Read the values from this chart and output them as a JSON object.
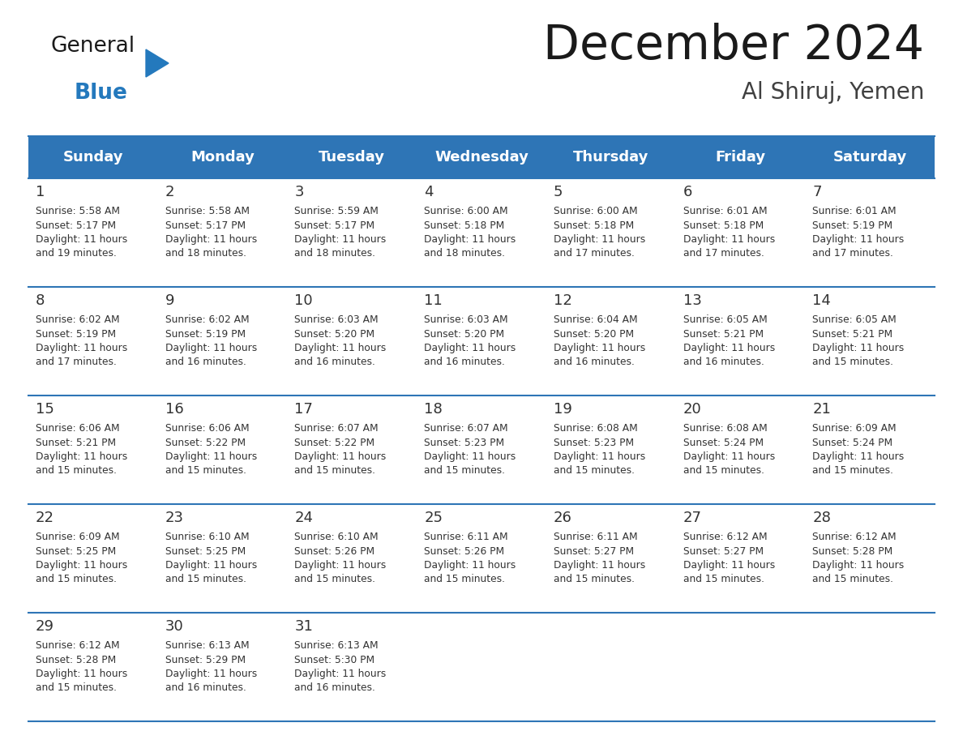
{
  "title": "December 2024",
  "subtitle": "Al Shiruj, Yemen",
  "header_bg_color": "#2E75B6",
  "header_text_color": "#FFFFFF",
  "day_headers": [
    "Sunday",
    "Monday",
    "Tuesday",
    "Wednesday",
    "Thursday",
    "Friday",
    "Saturday"
  ],
  "calendar_data": [
    [
      {
        "day": "1",
        "sunrise": "5:58 AM",
        "sunset": "5:17 PM",
        "daylight_h": "11 hours",
        "daylight_m": "and 19 minutes."
      },
      {
        "day": "2",
        "sunrise": "5:58 AM",
        "sunset": "5:17 PM",
        "daylight_h": "11 hours",
        "daylight_m": "and 18 minutes."
      },
      {
        "day": "3",
        "sunrise": "5:59 AM",
        "sunset": "5:17 PM",
        "daylight_h": "11 hours",
        "daylight_m": "and 18 minutes."
      },
      {
        "day": "4",
        "sunrise": "6:00 AM",
        "sunset": "5:18 PM",
        "daylight_h": "11 hours",
        "daylight_m": "and 18 minutes."
      },
      {
        "day": "5",
        "sunrise": "6:00 AM",
        "sunset": "5:18 PM",
        "daylight_h": "11 hours",
        "daylight_m": "and 17 minutes."
      },
      {
        "day": "6",
        "sunrise": "6:01 AM",
        "sunset": "5:18 PM",
        "daylight_h": "11 hours",
        "daylight_m": "and 17 minutes."
      },
      {
        "day": "7",
        "sunrise": "6:01 AM",
        "sunset": "5:19 PM",
        "daylight_h": "11 hours",
        "daylight_m": "and 17 minutes."
      }
    ],
    [
      {
        "day": "8",
        "sunrise": "6:02 AM",
        "sunset": "5:19 PM",
        "daylight_h": "11 hours",
        "daylight_m": "and 17 minutes."
      },
      {
        "day": "9",
        "sunrise": "6:02 AM",
        "sunset": "5:19 PM",
        "daylight_h": "11 hours",
        "daylight_m": "and 16 minutes."
      },
      {
        "day": "10",
        "sunrise": "6:03 AM",
        "sunset": "5:20 PM",
        "daylight_h": "11 hours",
        "daylight_m": "and 16 minutes."
      },
      {
        "day": "11",
        "sunrise": "6:03 AM",
        "sunset": "5:20 PM",
        "daylight_h": "11 hours",
        "daylight_m": "and 16 minutes."
      },
      {
        "day": "12",
        "sunrise": "6:04 AM",
        "sunset": "5:20 PM",
        "daylight_h": "11 hours",
        "daylight_m": "and 16 minutes."
      },
      {
        "day": "13",
        "sunrise": "6:05 AM",
        "sunset": "5:21 PM",
        "daylight_h": "11 hours",
        "daylight_m": "and 16 minutes."
      },
      {
        "day": "14",
        "sunrise": "6:05 AM",
        "sunset": "5:21 PM",
        "daylight_h": "11 hours",
        "daylight_m": "and 15 minutes."
      }
    ],
    [
      {
        "day": "15",
        "sunrise": "6:06 AM",
        "sunset": "5:21 PM",
        "daylight_h": "11 hours",
        "daylight_m": "and 15 minutes."
      },
      {
        "day": "16",
        "sunrise": "6:06 AM",
        "sunset": "5:22 PM",
        "daylight_h": "11 hours",
        "daylight_m": "and 15 minutes."
      },
      {
        "day": "17",
        "sunrise": "6:07 AM",
        "sunset": "5:22 PM",
        "daylight_h": "11 hours",
        "daylight_m": "and 15 minutes."
      },
      {
        "day": "18",
        "sunrise": "6:07 AM",
        "sunset": "5:23 PM",
        "daylight_h": "11 hours",
        "daylight_m": "and 15 minutes."
      },
      {
        "day": "19",
        "sunrise": "6:08 AM",
        "sunset": "5:23 PM",
        "daylight_h": "11 hours",
        "daylight_m": "and 15 minutes."
      },
      {
        "day": "20",
        "sunrise": "6:08 AM",
        "sunset": "5:24 PM",
        "daylight_h": "11 hours",
        "daylight_m": "and 15 minutes."
      },
      {
        "day": "21",
        "sunrise": "6:09 AM",
        "sunset": "5:24 PM",
        "daylight_h": "11 hours",
        "daylight_m": "and 15 minutes."
      }
    ],
    [
      {
        "day": "22",
        "sunrise": "6:09 AM",
        "sunset": "5:25 PM",
        "daylight_h": "11 hours",
        "daylight_m": "and 15 minutes."
      },
      {
        "day": "23",
        "sunrise": "6:10 AM",
        "sunset": "5:25 PM",
        "daylight_h": "11 hours",
        "daylight_m": "and 15 minutes."
      },
      {
        "day": "24",
        "sunrise": "6:10 AM",
        "sunset": "5:26 PM",
        "daylight_h": "11 hours",
        "daylight_m": "and 15 minutes."
      },
      {
        "day": "25",
        "sunrise": "6:11 AM",
        "sunset": "5:26 PM",
        "daylight_h": "11 hours",
        "daylight_m": "and 15 minutes."
      },
      {
        "day": "26",
        "sunrise": "6:11 AM",
        "sunset": "5:27 PM",
        "daylight_h": "11 hours",
        "daylight_m": "and 15 minutes."
      },
      {
        "day": "27",
        "sunrise": "6:12 AM",
        "sunset": "5:27 PM",
        "daylight_h": "11 hours",
        "daylight_m": "and 15 minutes."
      },
      {
        "day": "28",
        "sunrise": "6:12 AM",
        "sunset": "5:28 PM",
        "daylight_h": "11 hours",
        "daylight_m": "and 15 minutes."
      }
    ],
    [
      {
        "day": "29",
        "sunrise": "6:12 AM",
        "sunset": "5:28 PM",
        "daylight_h": "11 hours",
        "daylight_m": "and 15 minutes."
      },
      {
        "day": "30",
        "sunrise": "6:13 AM",
        "sunset": "5:29 PM",
        "daylight_h": "11 hours",
        "daylight_m": "and 16 minutes."
      },
      {
        "day": "31",
        "sunrise": "6:13 AM",
        "sunset": "5:30 PM",
        "daylight_h": "11 hours",
        "daylight_m": "and 16 minutes."
      },
      null,
      null,
      null,
      null
    ]
  ],
  "logo_color_general": "#1a1a1a",
  "logo_color_blue": "#2479BD",
  "logo_triangle_color": "#2479BD",
  "title_color": "#1a1a1a",
  "subtitle_color": "#404040",
  "grid_line_color": "#2E75B6",
  "cell_text_color": "#333333",
  "day_num_color": "#333333",
  "bg_color": "#FFFFFF"
}
